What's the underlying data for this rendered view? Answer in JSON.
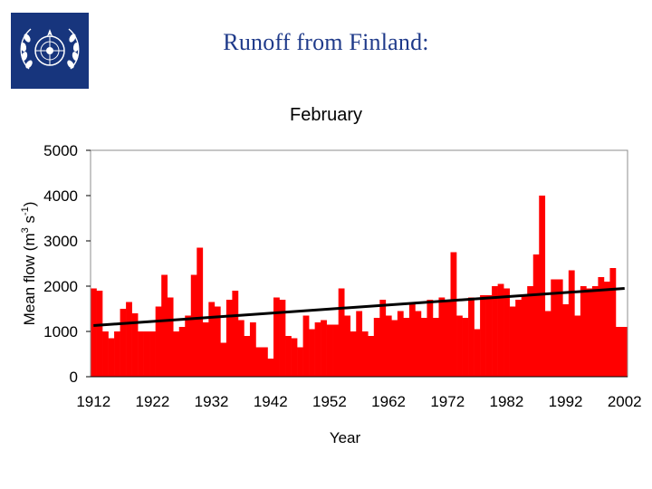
{
  "slide": {
    "title": "Runoff from Finland:"
  },
  "logo": {
    "name": "wmo-emblem-icon",
    "background": "#17357d"
  },
  "chart_data": {
    "type": "bar",
    "title": "February",
    "xlabel": "Year",
    "ylabel": {
      "main": "Mean flow (m",
      "sup1": "3",
      "mid": " s",
      "sup2": "-1",
      "end": ")"
    },
    "ylim": [
      0,
      5000
    ],
    "yticks": [
      0,
      1000,
      2000,
      3000,
      4000,
      5000
    ],
    "xticks": [
      1912,
      1922,
      1932,
      1942,
      1952,
      1962,
      1972,
      1982,
      1992,
      2002
    ],
    "grid": false,
    "legend": "none",
    "bar_color": "#ff0000",
    "trend_color": "#000000",
    "trend": {
      "x": [
        1912,
        2002
      ],
      "y": [
        1130,
        1950
      ]
    },
    "x": [
      1912,
      1913,
      1914,
      1915,
      1916,
      1917,
      1918,
      1919,
      1920,
      1921,
      1922,
      1923,
      1924,
      1925,
      1926,
      1927,
      1928,
      1929,
      1930,
      1931,
      1932,
      1933,
      1934,
      1935,
      1936,
      1937,
      1938,
      1939,
      1940,
      1941,
      1942,
      1943,
      1944,
      1945,
      1946,
      1947,
      1948,
      1949,
      1950,
      1951,
      1952,
      1953,
      1954,
      1955,
      1956,
      1957,
      1958,
      1959,
      1960,
      1961,
      1962,
      1963,
      1964,
      1965,
      1966,
      1967,
      1968,
      1969,
      1970,
      1971,
      1972,
      1973,
      1974,
      1975,
      1976,
      1977,
      1978,
      1979,
      1980,
      1981,
      1982,
      1983,
      1984,
      1985,
      1986,
      1987,
      1988,
      1989,
      1990,
      1991,
      1992,
      1993,
      1994,
      1995,
      1996,
      1997,
      1998,
      1999,
      2000,
      2001,
      2002
    ],
    "values": [
      1950,
      1900,
      1000,
      850,
      1000,
      1500,
      1650,
      1400,
      1000,
      1000,
      1000,
      1550,
      2250,
      1750,
      1000,
      1100,
      1350,
      2250,
      2850,
      1200,
      1650,
      1550,
      750,
      1700,
      1900,
      1250,
      900,
      1200,
      650,
      650,
      400,
      1750,
      1700,
      900,
      850,
      650,
      1350,
      1050,
      1200,
      1250,
      1150,
      1150,
      1950,
      1350,
      1000,
      1450,
      1000,
      900,
      1300,
      1700,
      1350,
      1250,
      1450,
      1300,
      1600,
      1450,
      1300,
      1700,
      1300,
      1750,
      1700,
      2750,
      1350,
      1300,
      1750,
      1050,
      1800,
      1800,
      2000,
      2050,
      1950,
      1550,
      1700,
      1800,
      2000,
      2700,
      4000,
      1450,
      2150,
      2150,
      1600,
      2350,
      1350,
      2000,
      1950,
      2000,
      2200,
      2100,
      2400,
      1100,
      1100
    ]
  }
}
